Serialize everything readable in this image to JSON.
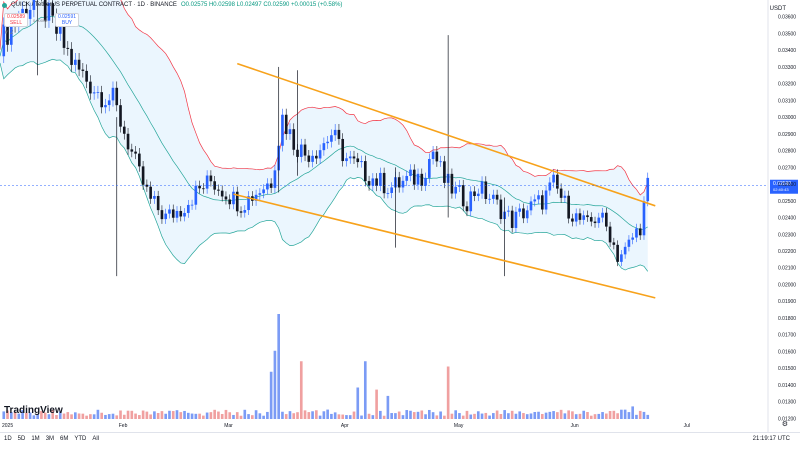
{
  "header": {
    "symbol_line": "QUICK / TetherUS PERPETUAL CONTRACT · 1D · BINANCE",
    "ohlc": "O0.02575 H0.02598 L0.02497 C0.02590 +0.00015 (+0.58%)",
    "sell_price": "0.02589",
    "sell_label": "SELL",
    "spread": "0.00002",
    "buy_price": "0.02591",
    "buy_label": "BUY",
    "indicator_label": "∨ 2"
  },
  "currency": "USDT",
  "branding": "TradingView",
  "timeframes": [
    "1D",
    "5D",
    "1M",
    "3M",
    "6M",
    "YTD",
    "All"
  ],
  "clock": "21:19:17 UTC",
  "colors": {
    "up": "#2962ff",
    "down": "#131722",
    "channel": "#f7a21b",
    "bb_upper": "#f23645",
    "bb_basis": "#26a69a",
    "bb_fill": "#e3f2fd",
    "vol_up": "#7b9bf5",
    "vol_down": "#f0a0a0",
    "last_price": "#2962ff"
  },
  "chart_data": {
    "type": "candlestick",
    "x_ticks": [
      "2025",
      "Feb",
      "Mar",
      "Apr",
      "May",
      "Jun",
      "Jul"
    ],
    "y_ticks": [
      "0.03600",
      "0.03500",
      "0.03400",
      "0.03300",
      "0.03200",
      "0.03100",
      "0.03000",
      "0.02900",
      "0.02800",
      "0.02700",
      "0.02600",
      "0.02500",
      "0.02400",
      "0.02300",
      "0.02200",
      "0.02100",
      "0.02000",
      "0.01900",
      "0.01800",
      "0.01700",
      "0.01600",
      "0.01500",
      "0.01400",
      "0.01300",
      "0.01200"
    ],
    "last_price_label": "0.02590",
    "countdown_label": "02:40:43",
    "ylim": [
      0.0119,
      0.037
    ],
    "start_date": "2025-01-01",
    "end_date": "2025-07-07",
    "price_path": [
      [
        0,
        0.0345
      ],
      [
        5,
        0.036
      ],
      [
        10,
        0.0372
      ],
      [
        14,
        0.0355
      ],
      [
        20,
        0.033
      ],
      [
        26,
        0.0315
      ],
      [
        30,
        0.031
      ],
      [
        34,
        0.0285
      ],
      [
        37,
        0.0265
      ],
      [
        40,
        0.025
      ],
      [
        44,
        0.024
      ],
      [
        48,
        0.0245
      ],
      [
        52,
        0.0255
      ],
      [
        56,
        0.0262
      ],
      [
        60,
        0.0255
      ],
      [
        64,
        0.0248
      ],
      [
        68,
        0.0255
      ],
      [
        72,
        0.0262
      ],
      [
        75,
        0.03
      ],
      [
        78,
        0.0285
      ],
      [
        81,
        0.0278
      ],
      [
        85,
        0.0282
      ],
      [
        88,
        0.029
      ],
      [
        92,
        0.0275
      ],
      [
        96,
        0.0268
      ],
      [
        100,
        0.0262
      ],
      [
        104,
        0.0258
      ],
      [
        108,
        0.0262
      ],
      [
        112,
        0.0265
      ],
      [
        115,
        0.028
      ],
      [
        118,
        0.0262
      ],
      [
        121,
        0.0255
      ],
      [
        124,
        0.025
      ],
      [
        127,
        0.0258
      ],
      [
        130,
        0.0252
      ],
      [
        133,
        0.0245
      ],
      [
        136,
        0.0238
      ],
      [
        140,
        0.0245
      ],
      [
        144,
        0.025
      ],
      [
        147,
        0.026
      ],
      [
        150,
        0.0248
      ],
      [
        153,
        0.024
      ],
      [
        156,
        0.0235
      ],
      [
        159,
        0.0242
      ],
      [
        162,
        0.023
      ],
      [
        164,
        0.0217
      ],
      [
        166,
        0.022
      ],
      [
        168,
        0.0228
      ],
      [
        170,
        0.0235
      ],
      [
        172,
        0.0259
      ]
    ],
    "wicks": [
      {
        "day": 74,
        "high": 0.033,
        "low": 0.0255
      },
      {
        "day": 79,
        "high": 0.0328,
        "low": 0.0265
      },
      {
        "day": 105,
        "high": 0.027,
        "low": 0.0222
      },
      {
        "day": 119,
        "high": 0.0349,
        "low": 0.024
      },
      {
        "day": 10,
        "high": 0.0378,
        "low": 0.0325
      },
      {
        "day": 31,
        "high": 0.03,
        "low": 0.0205
      },
      {
        "day": 134,
        "high": 0.0252,
        "low": 0.0205
      }
    ],
    "channel_upper": [
      [
        63,
        0.0332
      ],
      [
        174,
        0.0247
      ]
    ],
    "channel_lower": [
      [
        62,
        0.0254
      ],
      [
        174,
        0.0192
      ]
    ],
    "volume_max_label": "",
    "volume_spikes": [
      {
        "day": 74,
        "value": 1.0,
        "up": true
      },
      {
        "day": 73,
        "value": 0.65,
        "up": true
      },
      {
        "day": 80,
        "value": 0.55,
        "up": false
      },
      {
        "day": 72,
        "value": 0.45,
        "up": true
      },
      {
        "day": 97,
        "value": 0.55,
        "up": true
      },
      {
        "day": 119,
        "value": 0.5,
        "up": false
      },
      {
        "day": 95,
        "value": 0.3,
        "up": true
      },
      {
        "day": 100,
        "value": 0.28,
        "up": false
      },
      {
        "day": 103,
        "value": 0.22,
        "up": true
      },
      {
        "day": 168,
        "value": 0.12,
        "up": true
      }
    ]
  }
}
